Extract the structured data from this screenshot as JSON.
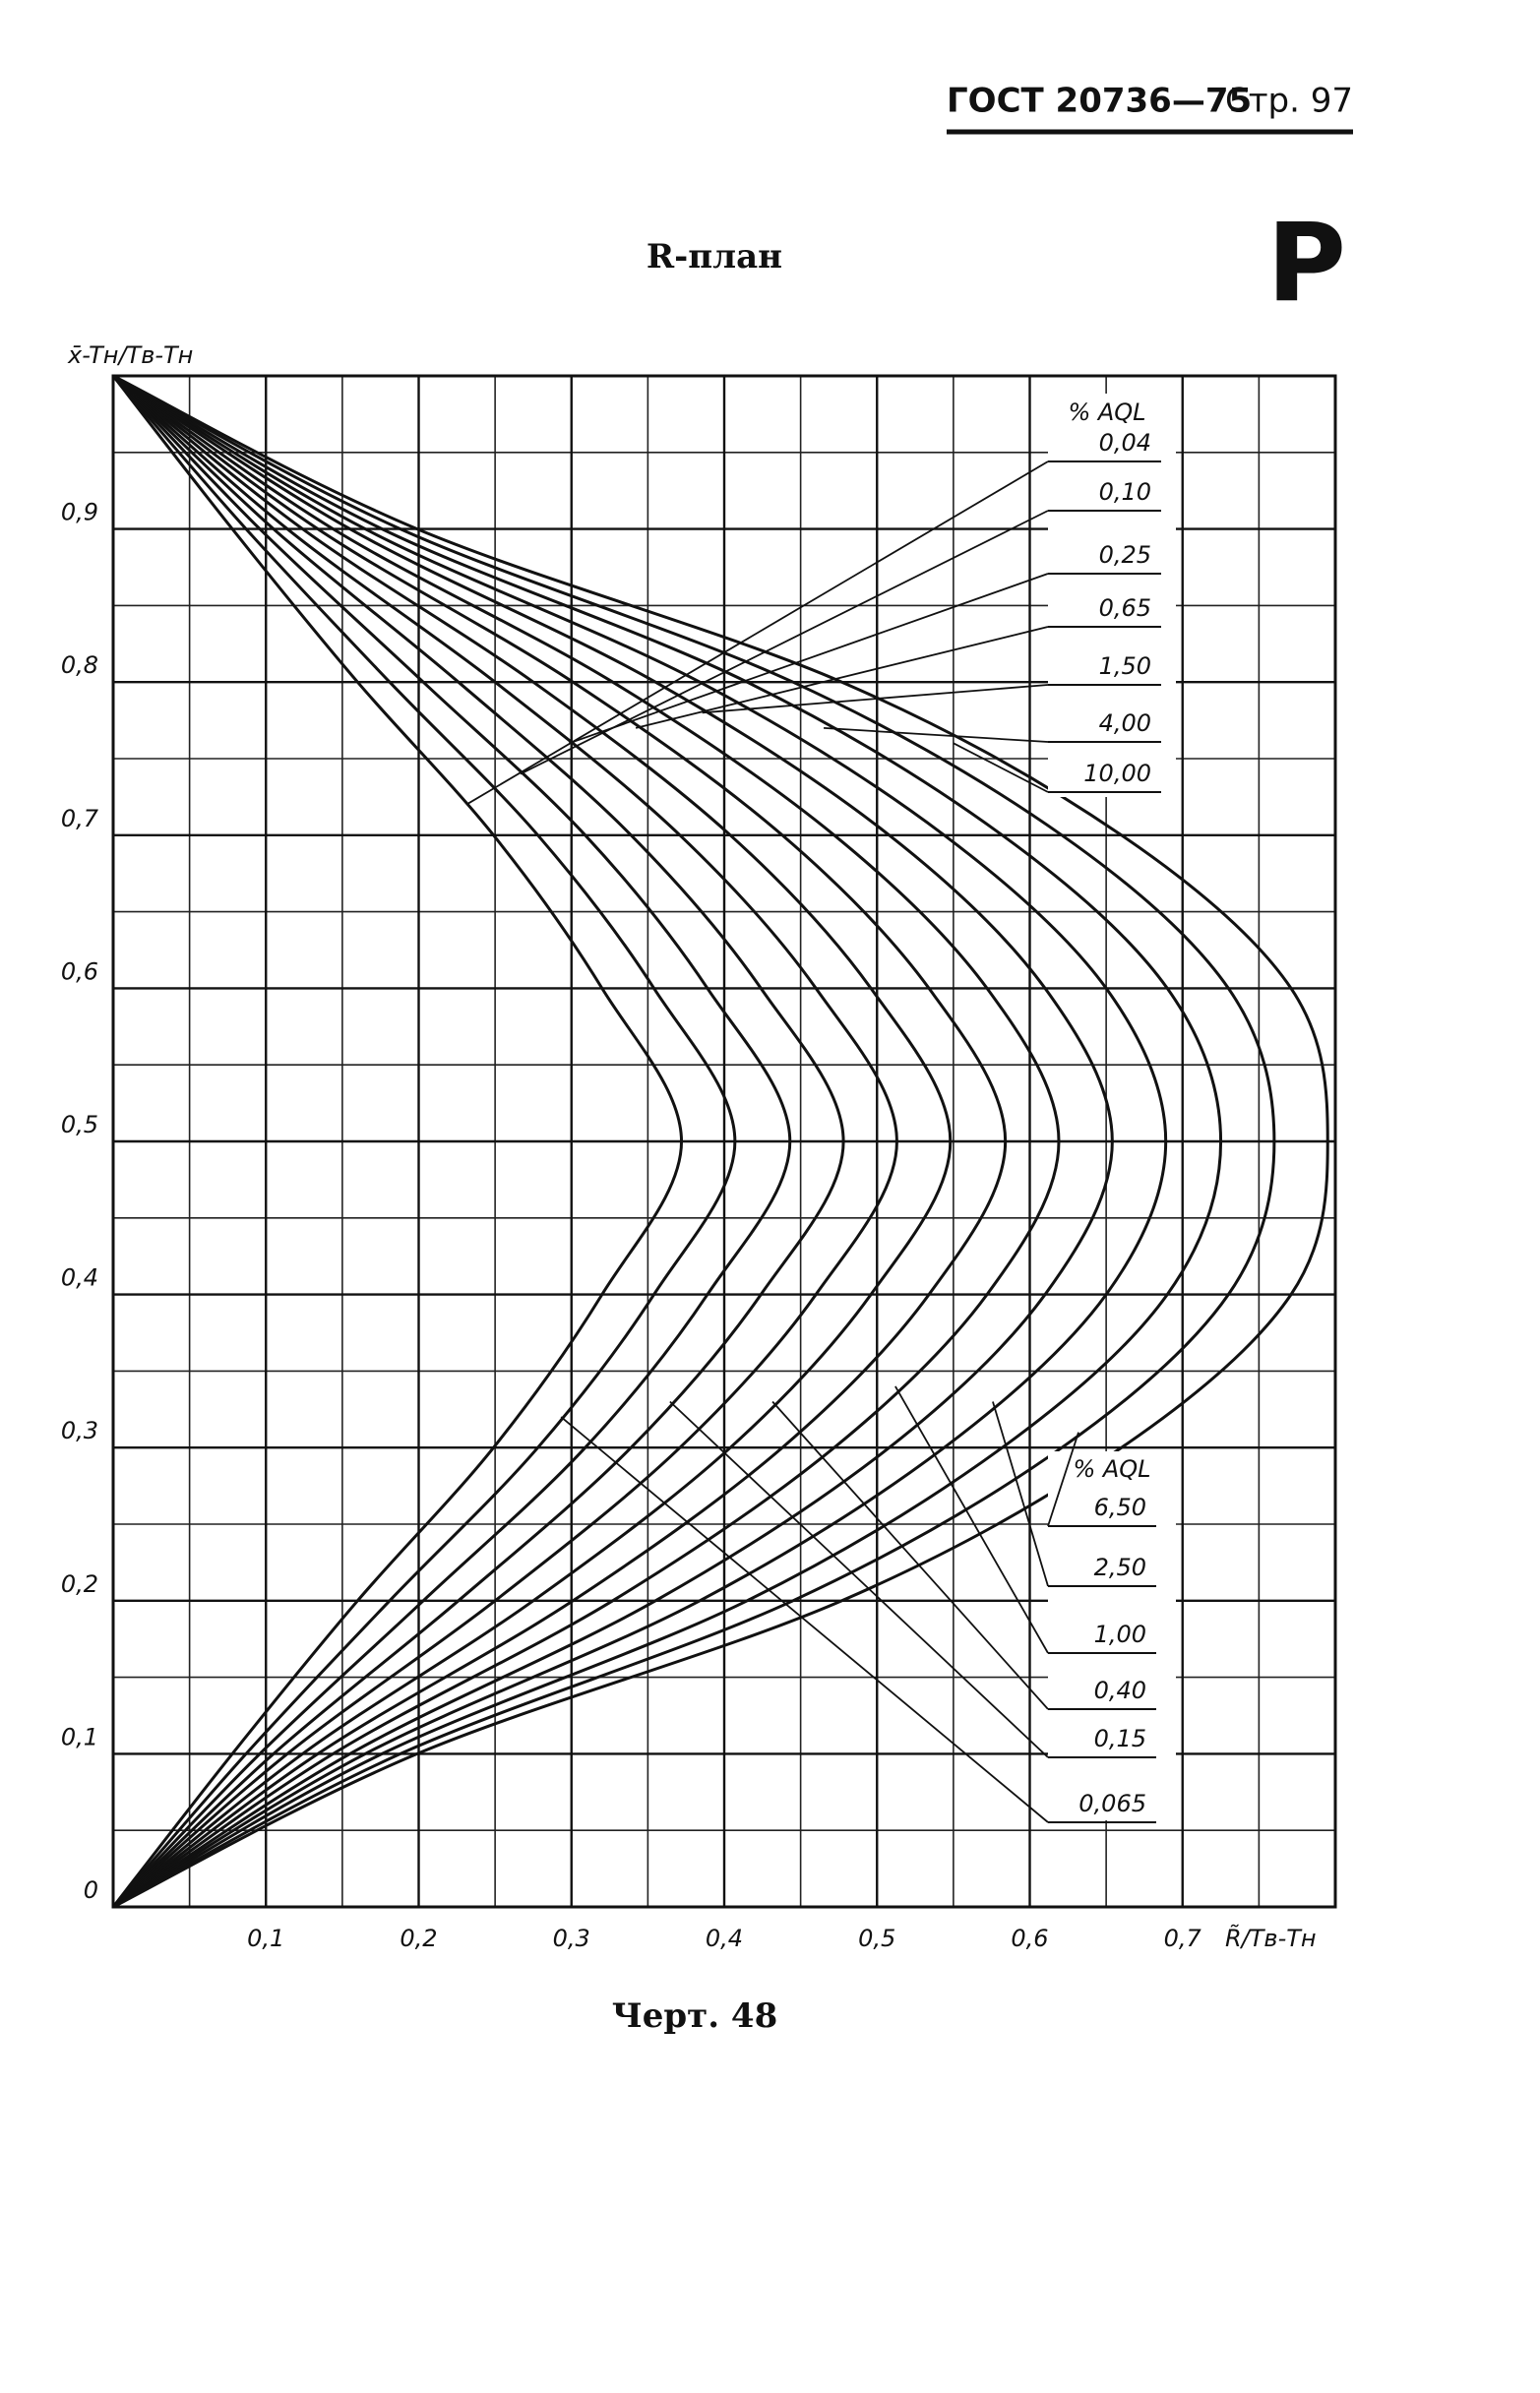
{
  "header": {
    "standard": "ГОСТ 20736—75",
    "page": "Стр. 97",
    "letter": "P"
  },
  "chart_data": {
    "type": "line",
    "title": "R-план",
    "y_label": "x̄-Tн/Tв-Tн",
    "x_label": "R̃/Tв-Tн",
    "xlim": [
      0,
      0.8
    ],
    "ylim": [
      0,
      1
    ],
    "xticks": [
      {
        "value": 0.1,
        "label": "0,1"
      },
      {
        "value": 0.2,
        "label": "0,2"
      },
      {
        "value": 0.3,
        "label": "0,3"
      },
      {
        "value": 0.4,
        "label": "0,4"
      },
      {
        "value": 0.5,
        "label": "0,5"
      },
      {
        "value": 0.6,
        "label": "0,6"
      },
      {
        "value": 0.7,
        "label": "0,7"
      }
    ],
    "yticks": [
      0,
      {
        "value": 0.1,
        "label": "0,1"
      },
      {
        "value": 0.2,
        "label": "0,2"
      },
      {
        "value": 0.3,
        "label": "0,3"
      },
      {
        "value": 0.4,
        "label": "0,4"
      },
      {
        "value": 0.5,
        "label": "0,5"
      },
      {
        "value": 0.6,
        "label": "0,6"
      },
      {
        "value": 0.7,
        "label": "0,7"
      },
      {
        "value": 0.8,
        "label": "0,8"
      },
      {
        "value": 0.9,
        "label": "0,9"
      }
    ],
    "grid": true,
    "minor_grid": true,
    "color": "#111111",
    "legend_titles": [
      "% AQL",
      "% AQL"
    ],
    "y": [
      0,
      0.1,
      0.2,
      0.3,
      0.4,
      0.5,
      0.6,
      0.7,
      0.8,
      0.9,
      1
    ],
    "series": [
      {
        "name": "0,04",
        "x": [
          0,
          0.078,
          0.16,
          0.249,
          0.32,
          0.372,
          0.32,
          0.249,
          0.16,
          0.078,
          0
        ]
      },
      {
        "name": "0,065",
        "x": [
          0,
          0.087,
          0.181,
          0.278,
          0.354,
          0.407,
          0.354,
          0.278,
          0.181,
          0.087,
          0
        ]
      },
      {
        "name": "0,10",
        "x": [
          0,
          0.096,
          0.203,
          0.309,
          0.389,
          0.443,
          0.389,
          0.309,
          0.203,
          0.096,
          0
        ]
      },
      {
        "name": "0,15",
        "x": [
          0,
          0.105,
          0.226,
          0.339,
          0.424,
          0.478,
          0.424,
          0.339,
          0.226,
          0.105,
          0
        ]
      },
      {
        "name": "0,25",
        "x": [
          0,
          0.114,
          0.25,
          0.371,
          0.46,
          0.513,
          0.46,
          0.371,
          0.25,
          0.114,
          0
        ]
      },
      {
        "name": "0,40",
        "x": [
          0,
          0.124,
          0.275,
          0.404,
          0.496,
          0.548,
          0.496,
          0.404,
          0.275,
          0.124,
          0
        ]
      },
      {
        "name": "0,65",
        "x": [
          0,
          0.134,
          0.301,
          0.438,
          0.534,
          0.584,
          0.534,
          0.438,
          0.301,
          0.134,
          0
        ]
      },
      {
        "name": "1,00",
        "x": [
          0,
          0.144,
          0.327,
          0.472,
          0.572,
          0.619,
          0.572,
          0.472,
          0.327,
          0.144,
          0
        ]
      },
      {
        "name": "1,50",
        "x": [
          0,
          0.155,
          0.355,
          0.508,
          0.61,
          0.654,
          0.61,
          0.508,
          0.355,
          0.155,
          0
        ]
      },
      {
        "name": "2,50",
        "x": [
          0,
          0.165,
          0.384,
          0.544,
          0.65,
          0.689,
          0.65,
          0.544,
          0.384,
          0.165,
          0
        ]
      },
      {
        "name": "4,00",
        "x": [
          0,
          0.176,
          0.415,
          0.582,
          0.69,
          0.725,
          0.69,
          0.582,
          0.415,
          0.176,
          0
        ]
      },
      {
        "name": "6,50",
        "x": [
          0,
          0.188,
          0.445,
          0.621,
          0.73,
          0.76,
          0.73,
          0.621,
          0.445,
          0.188,
          0
        ]
      },
      {
        "name": "10,00",
        "x": [
          0,
          0.199,
          0.477,
          0.66,
          0.771,
          0.795,
          0.771,
          0.66,
          0.477,
          0.199,
          0
        ]
      }
    ]
  },
  "caption": "Черт. 48"
}
